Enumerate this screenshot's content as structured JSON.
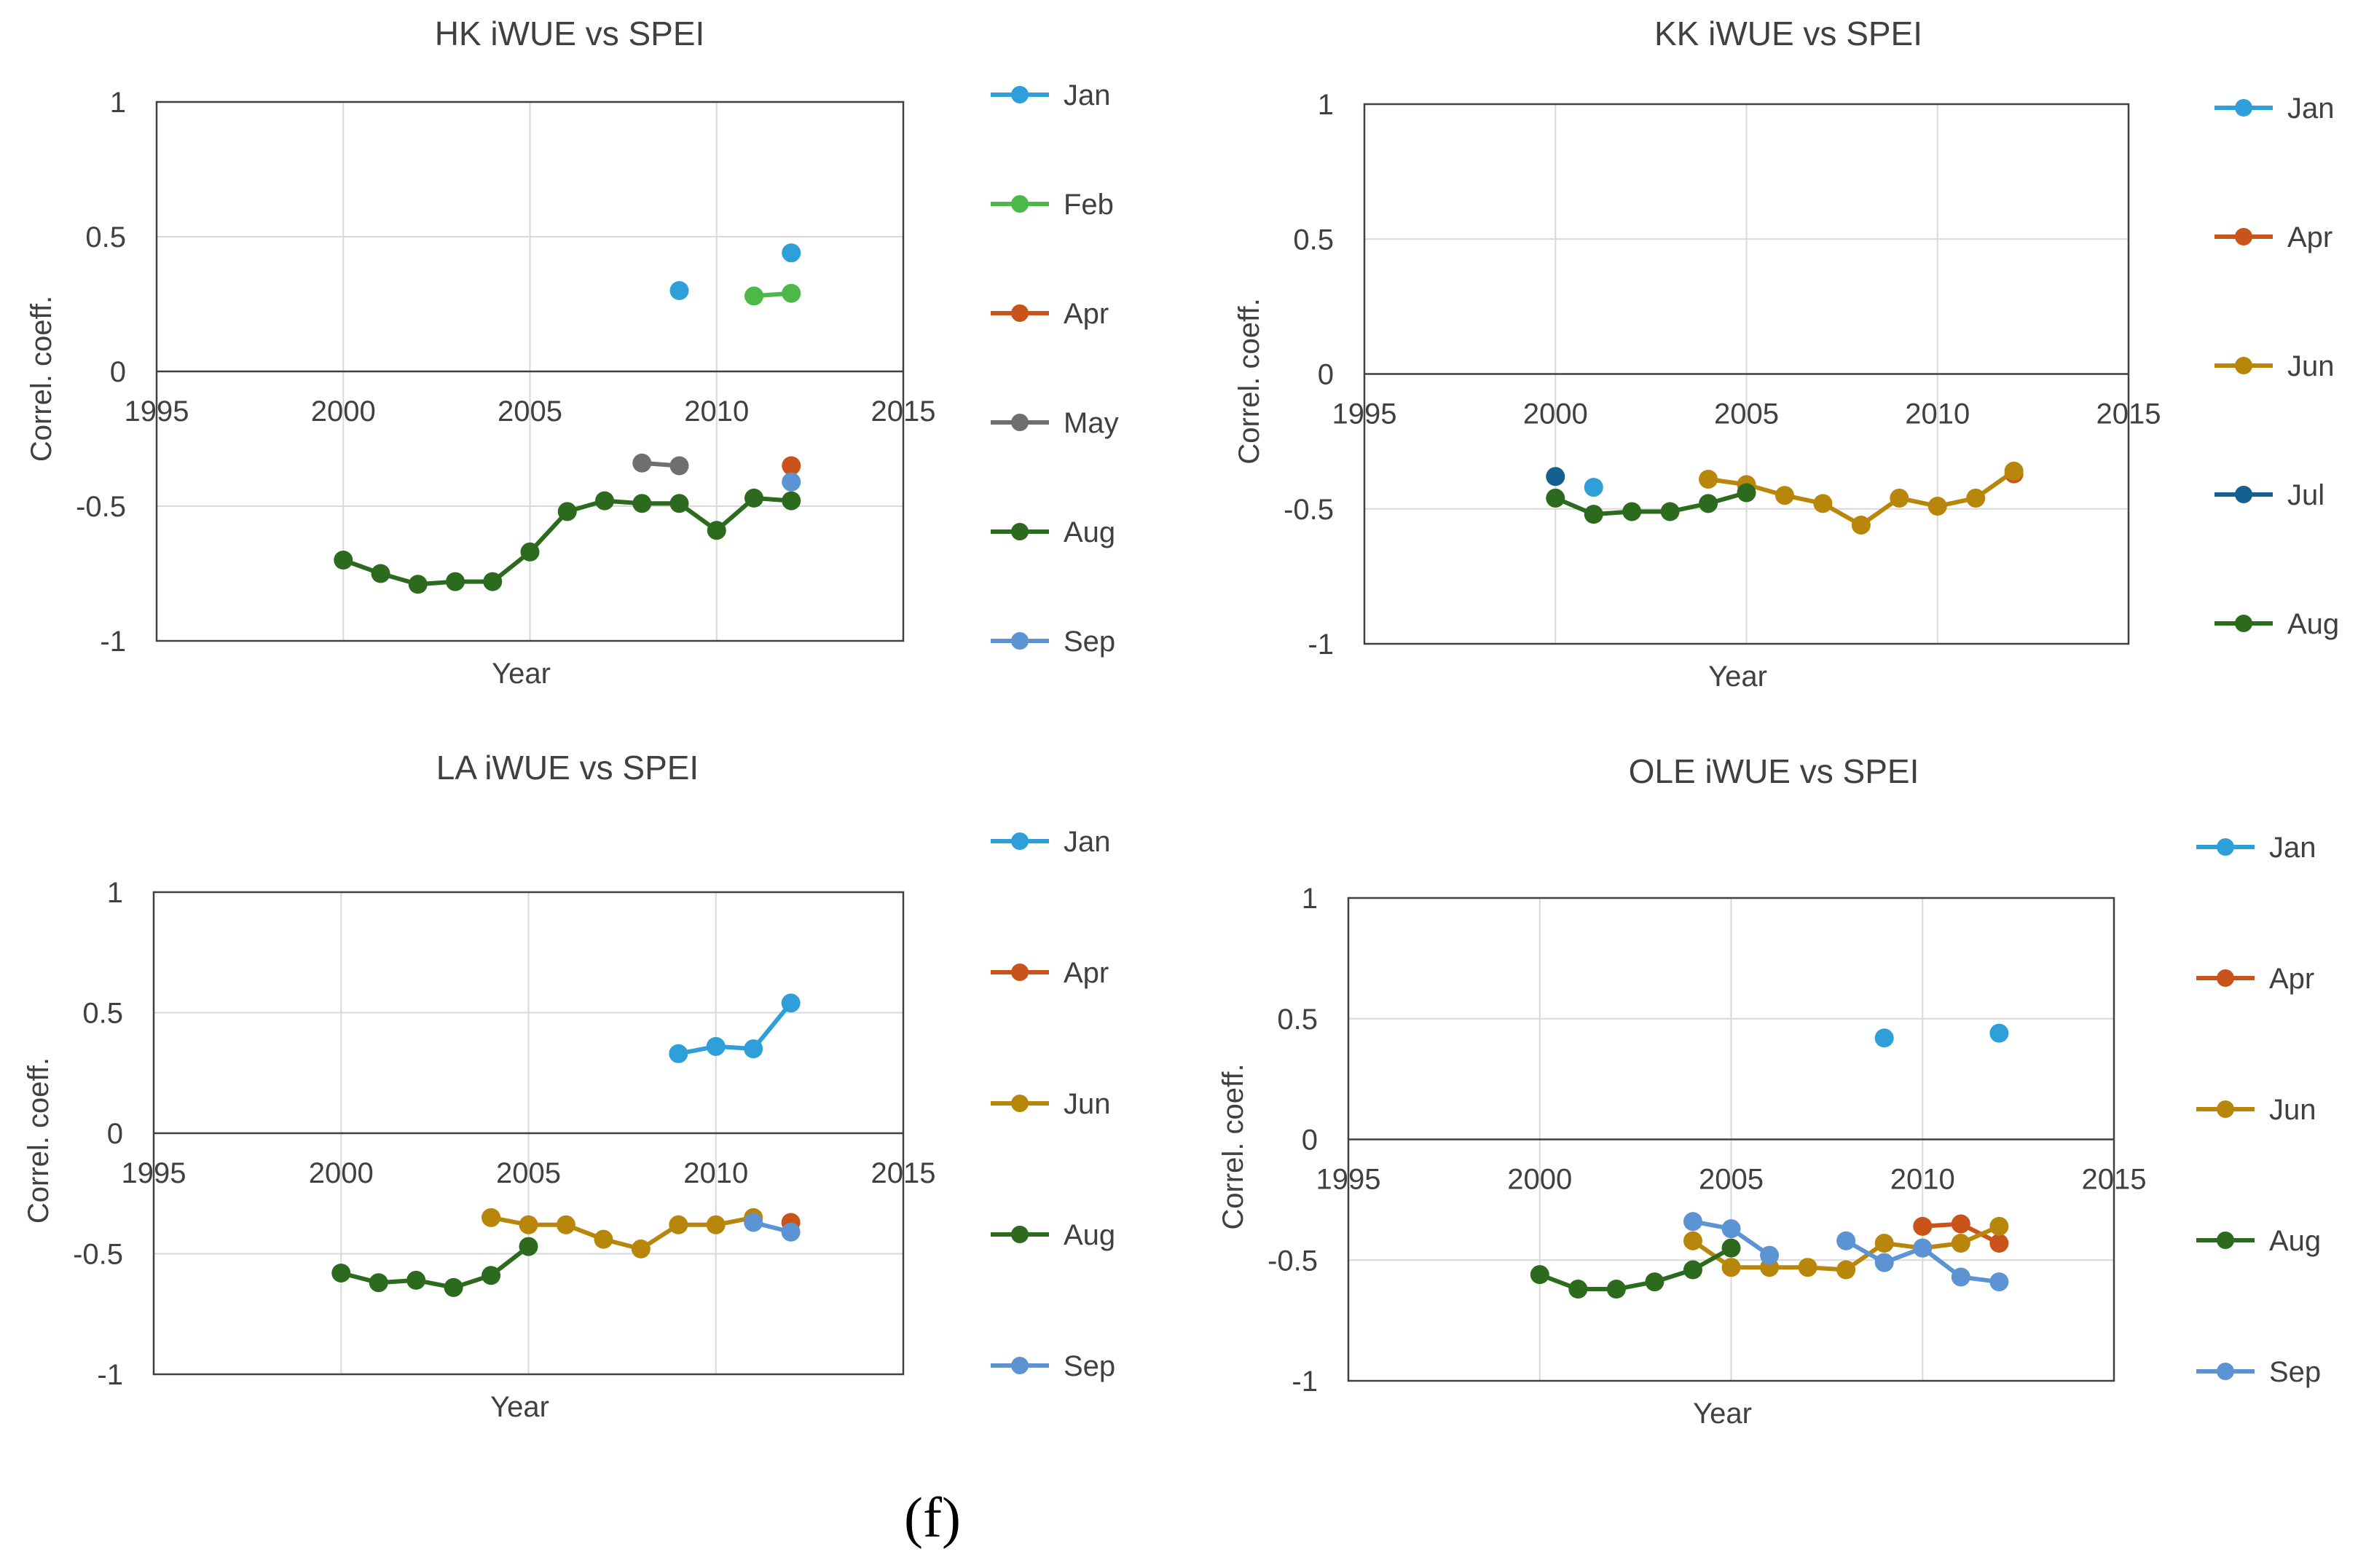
{
  "panel_label": "(f)",
  "colors": {
    "Jan": "#2E9FD8",
    "Feb": "#4CB847",
    "Apr": "#C9531B",
    "May": "#6F6F6F",
    "Jun": "#B8860B",
    "Jul": "#15608F",
    "Aug": "#2C6B1E",
    "Sep": "#5B93D3"
  },
  "chart_data": [
    {
      "id": "hk",
      "type": "line",
      "title": "HK iWUE vs SPEI",
      "xlabel": "Year",
      "ylabel": "Correl. coeff.",
      "xlim": [
        1995,
        2015
      ],
      "ylim": [
        -1,
        1
      ],
      "xticks": [
        "1995",
        "2000",
        "2005",
        "2010",
        "2015"
      ],
      "yticks": [
        "1",
        "0.5",
        "0",
        "-0.5",
        "-1"
      ],
      "legend": [
        "Jan",
        "Feb",
        "Apr",
        "May",
        "Aug",
        "Sep"
      ],
      "series": [
        {
          "name": "Jan",
          "segments": [
            [
              [
                2009,
                0.3
              ]
            ],
            [
              [
                2012,
                0.44
              ]
            ]
          ]
        },
        {
          "name": "Feb",
          "segments": [
            [
              [
                2011,
                0.28
              ],
              [
                2012,
                0.29
              ]
            ]
          ]
        },
        {
          "name": "Apr",
          "segments": [
            [
              [
                2012,
                -0.35
              ]
            ]
          ]
        },
        {
          "name": "May",
          "segments": [
            [
              [
                2008,
                -0.34
              ],
              [
                2009,
                -0.35
              ]
            ]
          ]
        },
        {
          "name": "Aug",
          "segments": [
            [
              [
                2000,
                -0.7
              ],
              [
                2001,
                -0.75
              ],
              [
                2002,
                -0.79
              ],
              [
                2003,
                -0.78
              ],
              [
                2004,
                -0.78
              ],
              [
                2005,
                -0.67
              ],
              [
                2006,
                -0.52
              ],
              [
                2007,
                -0.48
              ],
              [
                2008,
                -0.49
              ],
              [
                2009,
                -0.49
              ],
              [
                2010,
                -0.59
              ],
              [
                2011,
                -0.47
              ],
              [
                2012,
                -0.48
              ]
            ]
          ]
        },
        {
          "name": "Sep",
          "segments": [
            [
              [
                2012,
                -0.41
              ]
            ]
          ]
        }
      ]
    },
    {
      "id": "kk",
      "type": "line",
      "title": "KK iWUE vs SPEI",
      "xlabel": "Year",
      "ylabel": "Correl. coeff.",
      "xlim": [
        1995,
        2015
      ],
      "ylim": [
        -1,
        1
      ],
      "xticks": [
        "1995",
        "2000",
        "2005",
        "2010",
        "2015"
      ],
      "yticks": [
        "1",
        "0.5",
        "0",
        "-0.5",
        "-1"
      ],
      "legend": [
        "Jan",
        "Apr",
        "Jun",
        "Jul",
        "Aug"
      ],
      "series": [
        {
          "name": "Jan",
          "segments": [
            [
              [
                2001,
                -0.42
              ]
            ]
          ]
        },
        {
          "name": "Apr",
          "segments": [
            [
              [
                2012,
                -0.37
              ]
            ]
          ]
        },
        {
          "name": "Jun",
          "segments": [
            [
              [
                2004,
                -0.39
              ],
              [
                2005,
                -0.41
              ],
              [
                2006,
                -0.45
              ],
              [
                2007,
                -0.48
              ],
              [
                2008,
                -0.56
              ],
              [
                2009,
                -0.46
              ],
              [
                2010,
                -0.49
              ],
              [
                2011,
                -0.46
              ],
              [
                2012,
                -0.36
              ]
            ]
          ]
        },
        {
          "name": "Jul",
          "segments": [
            [
              [
                2000,
                -0.38
              ]
            ]
          ]
        },
        {
          "name": "Aug",
          "segments": [
            [
              [
                2000,
                -0.46
              ],
              [
                2001,
                -0.52
              ],
              [
                2002,
                -0.51
              ],
              [
                2003,
                -0.51
              ],
              [
                2004,
                -0.48
              ],
              [
                2005,
                -0.44
              ]
            ]
          ]
        }
      ]
    },
    {
      "id": "la",
      "type": "line",
      "title": "LA iWUE vs SPEI",
      "xlabel": "Year",
      "ylabel": "Correl. coeff.",
      "xlim": [
        1995,
        2015
      ],
      "ylim": [
        -1,
        1
      ],
      "xticks": [
        "1995",
        "2000",
        "2005",
        "2010",
        "2015"
      ],
      "yticks": [
        "1",
        "0.5",
        "0",
        "-0.5",
        "-1"
      ],
      "legend": [
        "Jan",
        "Apr",
        "Jun",
        "Aug",
        "Sep"
      ],
      "series": [
        {
          "name": "Jan",
          "segments": [
            [
              [
                2009,
                0.33
              ],
              [
                2010,
                0.36
              ],
              [
                2011,
                0.35
              ],
              [
                2012,
                0.54
              ]
            ]
          ]
        },
        {
          "name": "Apr",
          "segments": [
            [
              [
                2012,
                -0.37
              ]
            ]
          ]
        },
        {
          "name": "Jun",
          "segments": [
            [
              [
                2004,
                -0.35
              ],
              [
                2005,
                -0.38
              ],
              [
                2006,
                -0.38
              ],
              [
                2007,
                -0.44
              ],
              [
                2008,
                -0.48
              ],
              [
                2009,
                -0.38
              ],
              [
                2010,
                -0.38
              ],
              [
                2011,
                -0.35
              ]
            ]
          ]
        },
        {
          "name": "Aug",
          "segments": [
            [
              [
                2000,
                -0.58
              ],
              [
                2001,
                -0.62
              ],
              [
                2002,
                -0.61
              ],
              [
                2003,
                -0.64
              ],
              [
                2004,
                -0.59
              ],
              [
                2005,
                -0.47
              ]
            ]
          ]
        },
        {
          "name": "Sep",
          "segments": [
            [
              [
                2011,
                -0.37
              ],
              [
                2012,
                -0.41
              ]
            ]
          ]
        }
      ]
    },
    {
      "id": "ole",
      "type": "line",
      "title": "OLE iWUE vs SPEI",
      "xlabel": "Year",
      "ylabel": "Correl. coeff.",
      "xlim": [
        1995,
        2015
      ],
      "ylim": [
        -1,
        1
      ],
      "xticks": [
        "1995",
        "2000",
        "2005",
        "2010",
        "2015"
      ],
      "yticks": [
        "1",
        "0.5",
        "0",
        "-0.5",
        "-1"
      ],
      "legend": [
        "Jan",
        "Apr",
        "Jun",
        "Aug",
        "Sep"
      ],
      "series": [
        {
          "name": "Jan",
          "segments": [
            [
              [
                2009,
                0.42
              ]
            ],
            [
              [
                2012,
                0.44
              ]
            ]
          ]
        },
        {
          "name": "Apr",
          "segments": [
            [
              [
                2010,
                -0.36
              ],
              [
                2011,
                -0.35
              ],
              [
                2012,
                -0.43
              ]
            ]
          ]
        },
        {
          "name": "Jun",
          "segments": [
            [
              [
                2004,
                -0.42
              ],
              [
                2005,
                -0.53
              ],
              [
                2006,
                -0.53
              ],
              [
                2007,
                -0.53
              ],
              [
                2008,
                -0.54
              ],
              [
                2009,
                -0.43
              ],
              [
                2010,
                -0.45
              ],
              [
                2011,
                -0.43
              ],
              [
                2012,
                -0.36
              ]
            ]
          ]
        },
        {
          "name": "Aug",
          "segments": [
            [
              [
                2000,
                -0.56
              ],
              [
                2001,
                -0.62
              ],
              [
                2002,
                -0.62
              ],
              [
                2003,
                -0.59
              ],
              [
                2004,
                -0.54
              ],
              [
                2005,
                -0.45
              ]
            ]
          ]
        },
        {
          "name": "Sep",
          "segments": [
            [
              [
                2004,
                -0.34
              ],
              [
                2005,
                -0.37
              ],
              [
                2006,
                -0.48
              ]
            ],
            [
              [
                2008,
                -0.42
              ],
              [
                2009,
                -0.51
              ],
              [
                2010,
                -0.45
              ],
              [
                2011,
                -0.57
              ],
              [
                2012,
                -0.59
              ]
            ]
          ]
        }
      ]
    }
  ]
}
